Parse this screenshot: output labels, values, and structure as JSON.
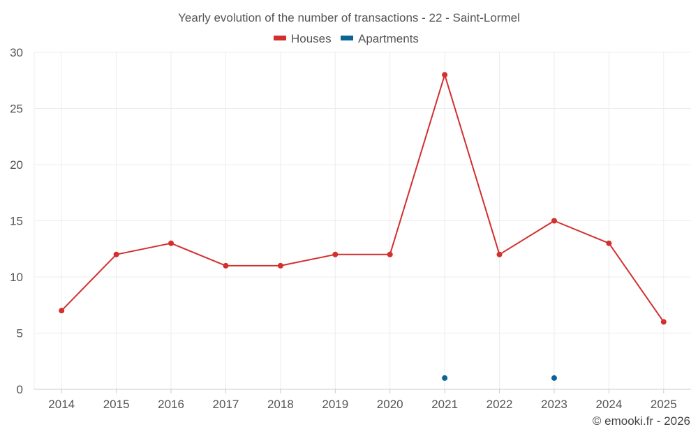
{
  "chart_data": {
    "type": "line",
    "title": "Yearly evolution of the number of transactions - 22 - Saint-Lormel",
    "categories": [
      "2014",
      "2015",
      "2016",
      "2017",
      "2018",
      "2019",
      "2020",
      "2021",
      "2022",
      "2023",
      "2024",
      "2025"
    ],
    "series": [
      {
        "name": "Houses",
        "color": "#d32f2f",
        "values": [
          7,
          12,
          13,
          11,
          11,
          12,
          12,
          28,
          12,
          15,
          13,
          6
        ]
      },
      {
        "name": "Apartments",
        "color": "#0a6496",
        "values": [
          null,
          null,
          null,
          null,
          null,
          null,
          null,
          1,
          null,
          1,
          null,
          null
        ]
      }
    ],
    "ylim": [
      0,
      30
    ],
    "yticks": [
      "0",
      "5",
      "10",
      "15",
      "20",
      "25",
      "30"
    ],
    "grid": true,
    "legend_position": "top-center"
  },
  "credit": "© emooki.fr - 2026"
}
